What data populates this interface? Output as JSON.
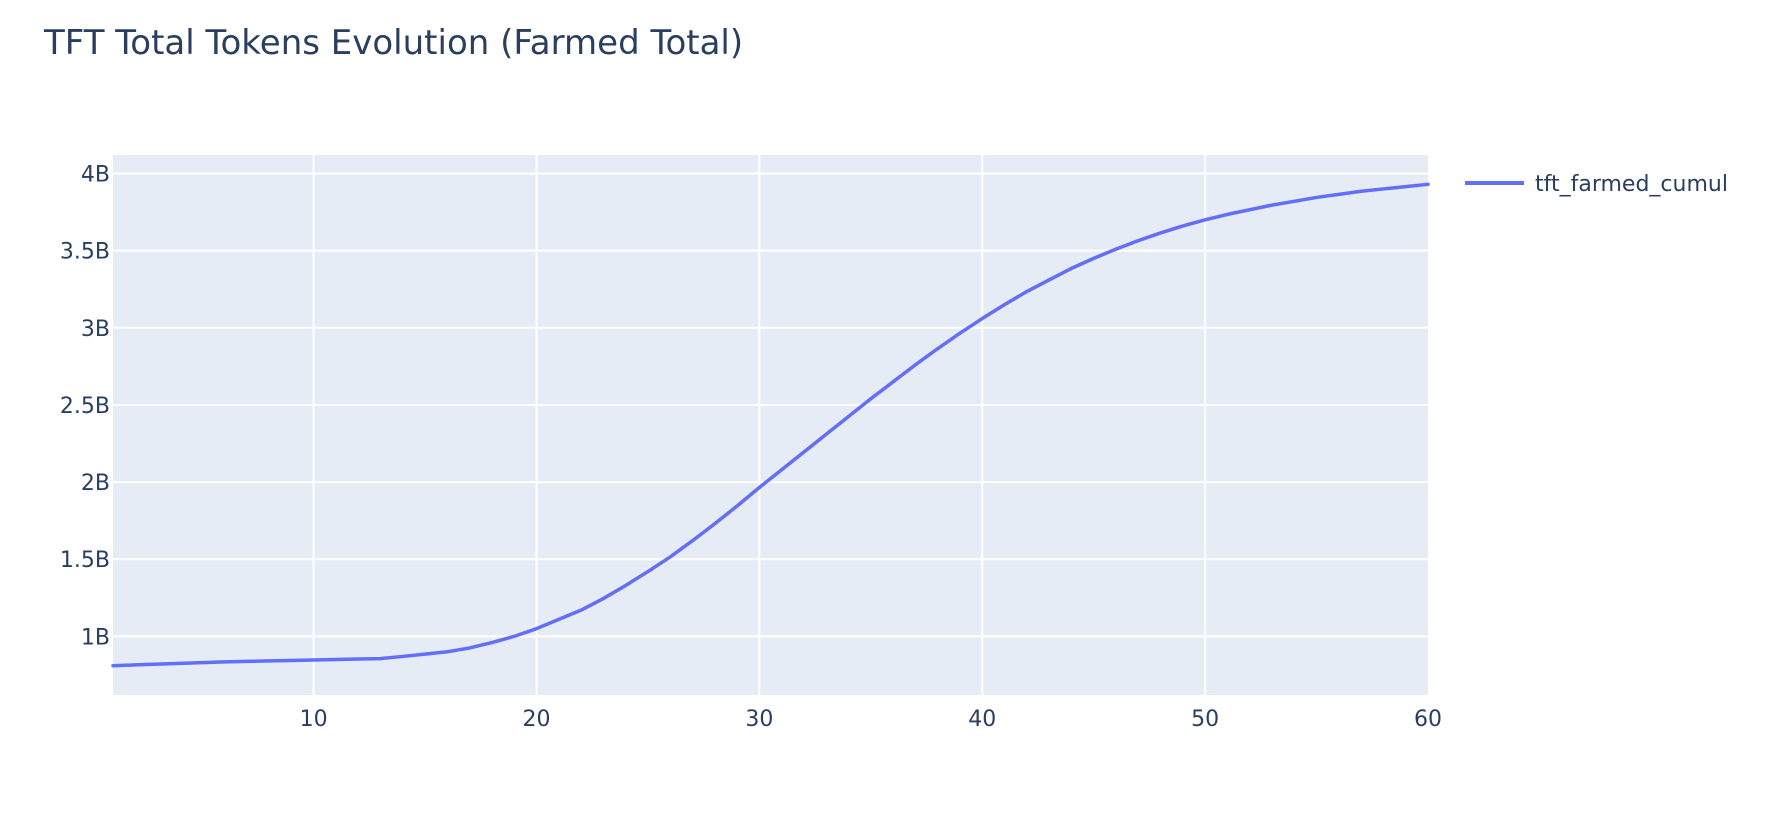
{
  "chart_data": {
    "type": "line",
    "title": "TFT Total Tokens Evolution (Farmed Total)",
    "xlabel": "",
    "ylabel": "",
    "xlim": [
      1,
      60
    ],
    "ylim": [
      0.62,
      4.12
    ],
    "x_ticks": [
      {
        "value": 10,
        "label": "10"
      },
      {
        "value": 20,
        "label": "20"
      },
      {
        "value": 30,
        "label": "30"
      },
      {
        "value": 40,
        "label": "40"
      },
      {
        "value": 50,
        "label": "50"
      },
      {
        "value": 60,
        "label": "60"
      }
    ],
    "y_ticks": [
      {
        "value": 1,
        "label": "1B"
      },
      {
        "value": 1.5,
        "label": "1.5B"
      },
      {
        "value": 2,
        "label": "2B"
      },
      {
        "value": 2.5,
        "label": "2.5B"
      },
      {
        "value": 3,
        "label": "3B"
      },
      {
        "value": 3.5,
        "label": "3.5B"
      },
      {
        "value": 4,
        "label": "4B"
      }
    ],
    "grid": true,
    "legend_position": "top-right",
    "colors": {
      "line": "#636efa",
      "plot_background": "#e5ecf6",
      "grid": "#ffffff",
      "text": "#2a3f5f"
    },
    "series": [
      {
        "name": "tft_farmed_cumul",
        "x": [
          1,
          2,
          3,
          4,
          5,
          6,
          7,
          8,
          9,
          10,
          11,
          12,
          13,
          14,
          15,
          16,
          17,
          18,
          19,
          20,
          21,
          22,
          23,
          24,
          25,
          26,
          27,
          28,
          29,
          30,
          31,
          32,
          33,
          34,
          35,
          36,
          37,
          38,
          39,
          40,
          41,
          42,
          43,
          44,
          45,
          46,
          47,
          48,
          49,
          50,
          51,
          52,
          53,
          54,
          55,
          56,
          57,
          58,
          59,
          60
        ],
        "values": [
          0.81,
          0.815,
          0.82,
          0.825,
          0.83,
          0.835,
          0.838,
          0.841,
          0.844,
          0.847,
          0.85,
          0.853,
          0.856,
          0.87,
          0.885,
          0.9,
          0.925,
          0.96,
          1.0,
          1.05,
          1.11,
          1.17,
          1.245,
          1.33,
          1.42,
          1.515,
          1.62,
          1.73,
          1.845,
          1.965,
          2.08,
          2.195,
          2.31,
          2.425,
          2.54,
          2.65,
          2.76,
          2.865,
          2.965,
          3.06,
          3.15,
          3.235,
          3.31,
          3.385,
          3.45,
          3.51,
          3.565,
          3.615,
          3.66,
          3.7,
          3.735,
          3.765,
          3.795,
          3.82,
          3.845,
          3.865,
          3.885,
          3.9,
          3.915,
          3.93
        ]
      }
    ]
  }
}
